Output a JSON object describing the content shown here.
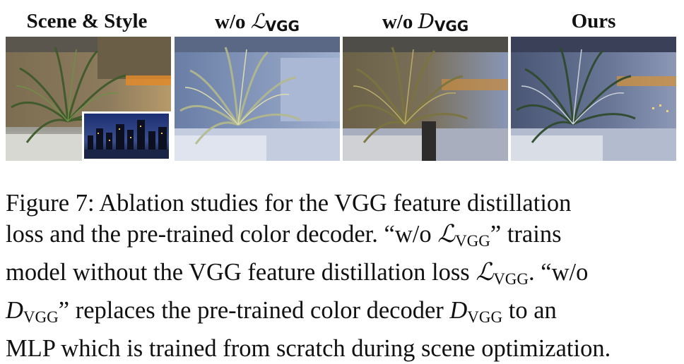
{
  "columns": [
    {
      "title": "Scene & Style",
      "math_symbol": "",
      "math_sub": ""
    },
    {
      "title": "w/o ",
      "math_symbol": "ℒ",
      "math_sub": "VGG"
    },
    {
      "title": "w/o ",
      "math_symbol": "D",
      "math_sub": "VGG"
    },
    {
      "title": "Ours",
      "math_symbol": "",
      "math_sub": ""
    }
  ],
  "caption": {
    "line1": "Figure 7: Ablation studies for the VGG feature distillation",
    "line2a": "loss and the pre-trained color decoder. “w/o ",
    "line2_sym": "ℒ",
    "line2_sub": "VGG",
    "line2b": "” trains",
    "line3a": "model without the VGG feature distillation loss ",
    "line3_sym": "ℒ",
    "line3_sub": "VGG",
    "line3b": ". “w/o",
    "line4_sym1": "D",
    "line4_sub1": "VGG",
    "line4a": "” replaces the pre-trained color decoder ",
    "line4_sym2": "D",
    "line4_sub2": "VGG",
    "line4b": " to an",
    "line5": "MLP which is trained from scratch during scene optimization."
  },
  "colors": {
    "scene_wall": "#8a7a5a",
    "scene_plant": "#4d6a35",
    "style_sky": "#1b2f6a",
    "blue_tint": "#7e93b8",
    "orange_light": "#e08a2c"
  }
}
